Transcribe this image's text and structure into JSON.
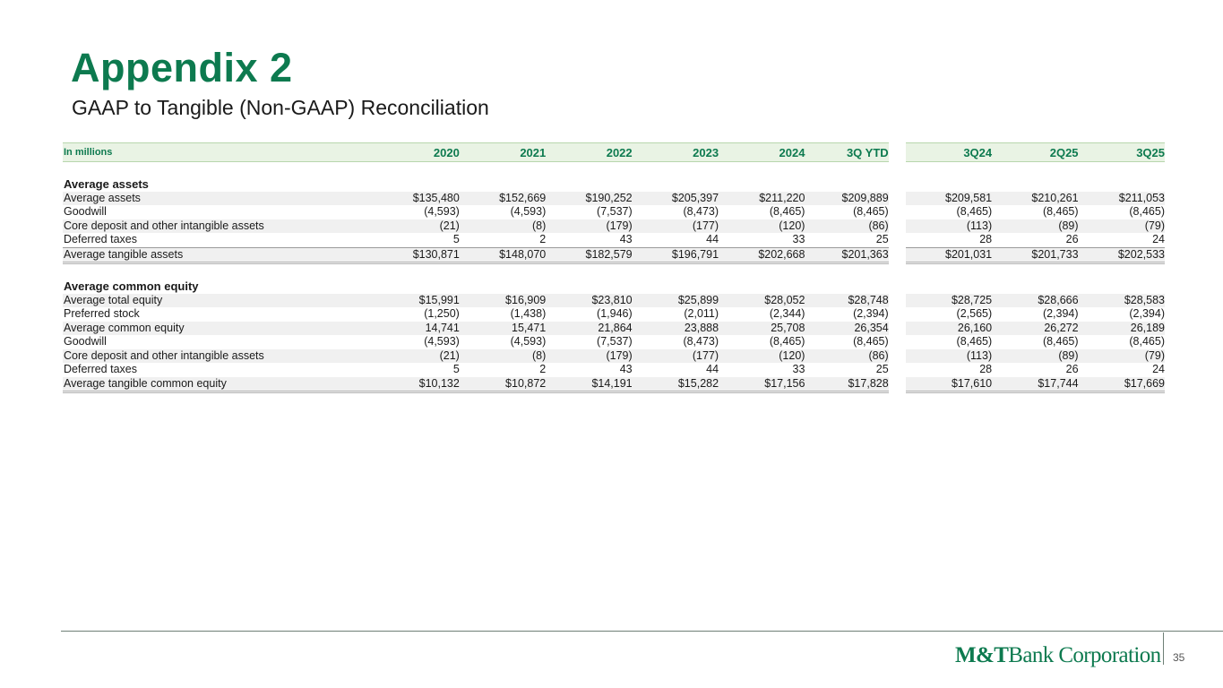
{
  "slide": {
    "title": "Appendix 2",
    "subtitle": "GAAP to Tangible (Non-GAAP) Reconciliation",
    "page_number": "35",
    "logo": {
      "brand": "M&T",
      "suffix": "Bank Corporation"
    }
  },
  "colors": {
    "accent": "#0d7a4f",
    "header_fill": "#e9f3e4",
    "row_shade": "#f0f0f0"
  },
  "table": {
    "header_label": "In millions",
    "columns": [
      "2020",
      "2021",
      "2022",
      "2023",
      "2024",
      "3Q YTD",
      "3Q24",
      "2Q25",
      "3Q25"
    ],
    "sections": [
      {
        "title": "Average assets",
        "rows": [
          {
            "label": "Average assets",
            "values": [
              "$135,480",
              "$152,669",
              "$190,252",
              "$205,397",
              "$211,220",
              "$209,889",
              "$209,581",
              "$210,261",
              "$211,053"
            ]
          },
          {
            "label": "Goodwill",
            "values": [
              "(4,593)",
              "(4,593)",
              "(7,537)",
              "(8,473)",
              "(8,465)",
              "(8,465)",
              "(8,465)",
              "(8,465)",
              "(8,465)"
            ]
          },
          {
            "label": "Core deposit and other intangible assets",
            "values": [
              "(21)",
              "(8)",
              "(179)",
              "(177)",
              "(120)",
              "(86)",
              "(113)",
              "(89)",
              "(79)"
            ]
          },
          {
            "label": "Deferred taxes",
            "values": [
              "5",
              "2",
              "43",
              "44",
              "33",
              "25",
              "28",
              "26",
              "24"
            ]
          },
          {
            "label": "Average tangible assets",
            "values": [
              "$130,871",
              "$148,070",
              "$182,579",
              "$196,791",
              "$202,668",
              "$201,363",
              "$201,031",
              "$201,733",
              "$202,533"
            ]
          }
        ]
      },
      {
        "title": "Average common equity",
        "rows": [
          {
            "label": "Average total equity",
            "values": [
              "$15,991",
              "$16,909",
              "$23,810",
              "$25,899",
              "$28,052",
              "$28,748",
              "$28,725",
              "$28,666",
              "$28,583"
            ]
          },
          {
            "label": "Preferred stock",
            "values": [
              "(1,250)",
              "(1,438)",
              "(1,946)",
              "(2,011)",
              "(2,344)",
              "(2,394)",
              "(2,565)",
              "(2,394)",
              "(2,394)"
            ]
          },
          {
            "label": "Average common equity",
            "values": [
              "14,741",
              "15,471",
              "21,864",
              "23,888",
              "25,708",
              "26,354",
              "26,160",
              "26,272",
              "26,189"
            ]
          },
          {
            "label": "Goodwill",
            "values": [
              "(4,593)",
              "(4,593)",
              "(7,537)",
              "(8,473)",
              "(8,465)",
              "(8,465)",
              "(8,465)",
              "(8,465)",
              "(8,465)"
            ]
          },
          {
            "label": "Core deposit and other intangible assets",
            "values": [
              "(21)",
              "(8)",
              "(179)",
              "(177)",
              "(120)",
              "(86)",
              "(113)",
              "(89)",
              "(79)"
            ]
          },
          {
            "label": "Deferred taxes",
            "values": [
              "5",
              "2",
              "43",
              "44",
              "33",
              "25",
              "28",
              "26",
              "24"
            ]
          },
          {
            "label": "Average tangible common equity",
            "values": [
              "$10,132",
              "$10,872",
              "$14,191",
              "$15,282",
              "$17,156",
              "$17,828",
              "$17,610",
              "$17,744",
              "$17,669"
            ]
          }
        ]
      }
    ]
  }
}
